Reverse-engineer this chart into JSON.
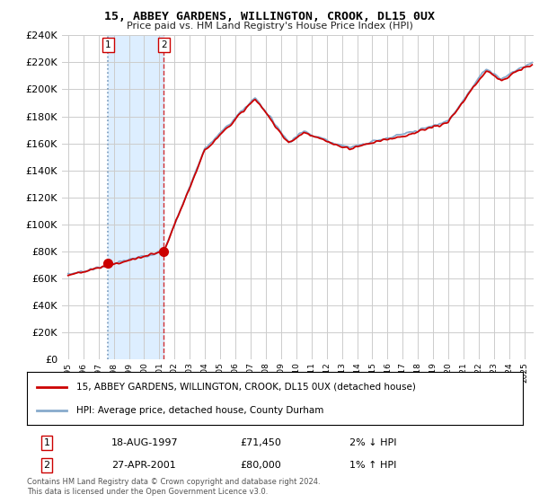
{
  "title": "15, ABBEY GARDENS, WILLINGTON, CROOK, DL15 0UX",
  "subtitle": "Price paid vs. HM Land Registry's House Price Index (HPI)",
  "ylim": [
    0,
    240000
  ],
  "xlim_start": 1994.6,
  "xlim_end": 2025.6,
  "sale1_year": 1997.62,
  "sale1_price": 71450,
  "sale1_label": "1",
  "sale1_date": "18-AUG-1997",
  "sale1_amount": "£71,450",
  "sale1_hpi": "2% ↓ HPI",
  "sale2_year": 2001.3,
  "sale2_price": 80000,
  "sale2_label": "2",
  "sale2_date": "27-APR-2001",
  "sale2_amount": "£80,000",
  "sale2_hpi": "1% ↑ HPI",
  "line_color_red": "#cc0000",
  "line_color_blue": "#88aacc",
  "dot_color": "#cc0000",
  "grid_color": "#cccccc",
  "shade_color": "#ddeeff",
  "background_color": "#ffffff",
  "legend_label_red": "15, ABBEY GARDENS, WILLINGTON, CROOK, DL15 0UX (detached house)",
  "legend_label_blue": "HPI: Average price, detached house, County Durham",
  "footnote": "Contains HM Land Registry data © Crown copyright and database right 2024.\nThis data is licensed under the Open Government Licence v3.0.",
  "xtick_years": [
    1995,
    1996,
    1997,
    1998,
    1999,
    2000,
    2001,
    2002,
    2003,
    2004,
    2005,
    2006,
    2007,
    2008,
    2009,
    2010,
    2011,
    2012,
    2013,
    2014,
    2015,
    2016,
    2017,
    2018,
    2019,
    2020,
    2021,
    2022,
    2023,
    2024,
    2025
  ]
}
